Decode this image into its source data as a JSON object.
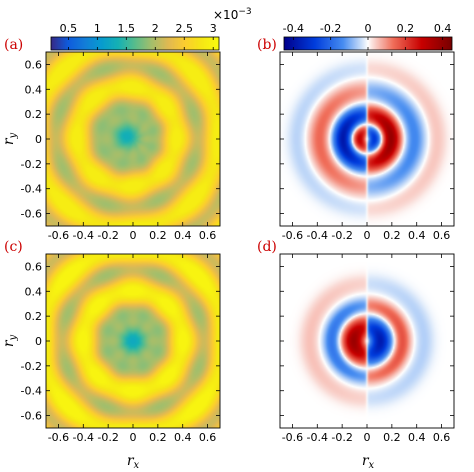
{
  "chart_data": {
    "colorbars": [
      {
        "id": "left",
        "colormap": "parula",
        "range": [
          0.2,
          3.1
        ],
        "ticks": [
          "0.5",
          "1",
          "1.5",
          "2",
          "2.5",
          "3"
        ],
        "tick_values": [
          0.5,
          1,
          1.5,
          2,
          2.5,
          3
        ],
        "exponent_base": "×10",
        "exponent_power": "−3"
      },
      {
        "id": "right",
        "colormap": "blue-white-red",
        "range": [
          -0.45,
          0.45
        ],
        "ticks": [
          "-0.4",
          "-0.2",
          "0",
          "0.2",
          "0.4"
        ],
        "tick_values": [
          -0.4,
          -0.2,
          0,
          0.2,
          0.4
        ]
      }
    ],
    "axes": {
      "xlabel_base": "r",
      "xlabel_sub": "x",
      "ylabel_base": "r",
      "ylabel_sub": "y",
      "xlim": [
        -0.7,
        0.7
      ],
      "ylim": [
        -0.7,
        0.7
      ],
      "ticks": [
        "-0.6",
        "-0.4",
        "-0.2",
        "0",
        "0.2",
        "0.4",
        "0.6"
      ],
      "tick_values": [
        -0.6,
        -0.4,
        -0.2,
        0,
        0.2,
        0.4,
        0.6
      ]
    },
    "panels": [
      {
        "label": "(a)",
        "type": "heatmap",
        "colormap": "parula",
        "kind": "rings",
        "center": [
          -0.05,
          0.02
        ],
        "min": 0.45,
        "max": 2.9
      },
      {
        "label": "(b)",
        "type": "heatmap",
        "colormap": "blue-white-red",
        "kind": "dipole",
        "amplitude": 0.4
      },
      {
        "label": "(c)",
        "type": "heatmap",
        "colormap": "parula",
        "kind": "rings",
        "center": [
          0.0,
          0.0
        ],
        "min": 0.3,
        "max": 3.0
      },
      {
        "label": "(d)",
        "type": "heatmap",
        "colormap": "blue-white-red",
        "kind": "dipole-inner",
        "amplitude": 0.45
      }
    ]
  }
}
